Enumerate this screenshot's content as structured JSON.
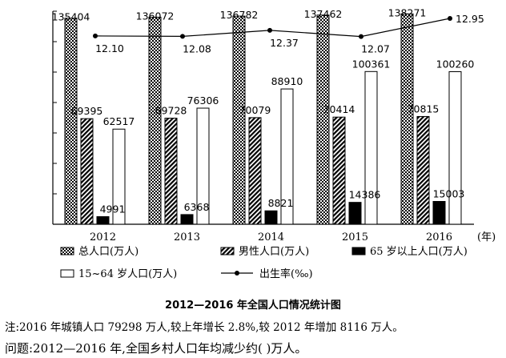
{
  "chart_data": {
    "type": "bar",
    "title": "2012—2016 年全国人口情况统计图",
    "x_unit": "(年)",
    "categories": [
      "2012",
      "2013",
      "2014",
      "2015",
      "2016"
    ],
    "ylim": [
      0,
      140000
    ],
    "grid": false,
    "legend_position": "bottom",
    "series": [
      {
        "name": "总人口(万人)",
        "type": "bar",
        "pattern": "dots",
        "values": [
          135404,
          136072,
          136782,
          137462,
          138271
        ]
      },
      {
        "name": "男性人口(万人)",
        "type": "bar",
        "pattern": "hatch",
        "values": [
          69395,
          69728,
          70079,
          70414,
          70815
        ]
      },
      {
        "name": "65 岁以上人口(万人)",
        "type": "bar",
        "pattern": "solid",
        "values": [
          4991,
          6368,
          8821,
          14386,
          15003
        ]
      },
      {
        "name": "15~64 岁人口(万人)",
        "type": "bar",
        "pattern": "empty",
        "values": [
          62517,
          76306,
          88910,
          100361,
          100260
        ]
      },
      {
        "name": "出生率(‰)",
        "type": "line",
        "values": [
          12.1,
          12.08,
          12.37,
          12.07,
          12.95
        ]
      }
    ]
  },
  "note": "注:2016 年城镇人口 79298 万人,较上年增长 2.8%,较 2012 年增加 8116 万人。",
  "question": "问题:2012—2016 年,全国乡村人口年均减少约(    )万人。"
}
